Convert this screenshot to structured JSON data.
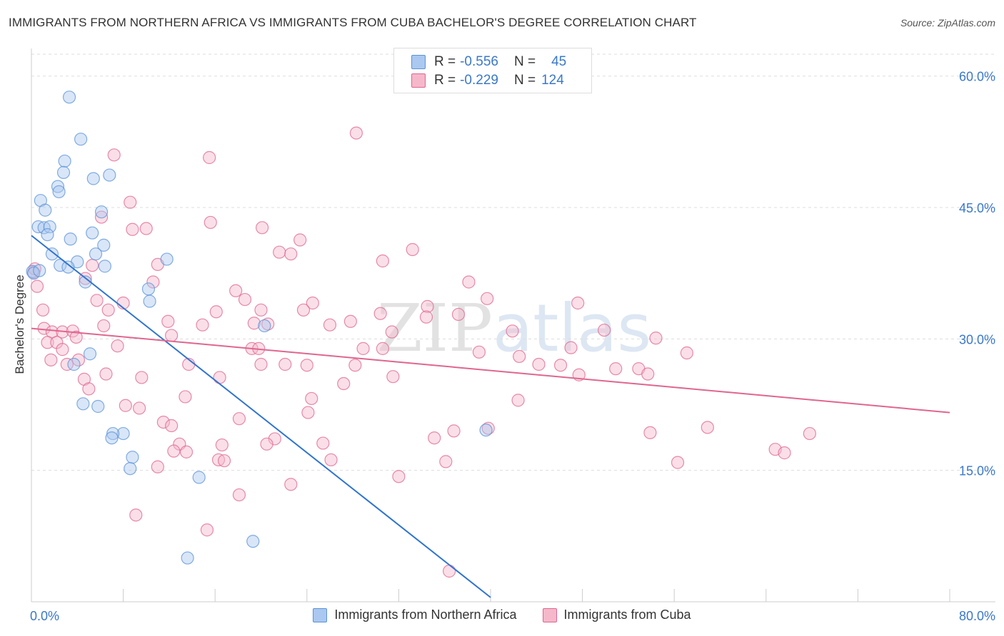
{
  "title": "IMMIGRANTS FROM NORTHERN AFRICA VS IMMIGRANTS FROM CUBA BACHELOR'S DEGREE CORRELATION CHART",
  "source": "Source: ZipAtlas.com",
  "watermark": "ZIPatlas",
  "legend": {
    "rows": [
      {
        "r_label": "R =",
        "r_value": "-0.556",
        "n_label": "N =",
        "n_value": "45",
        "color": "#aac8f0"
      },
      {
        "r_label": "R =",
        "r_value": "-0.229",
        "n_label": "N =",
        "n_value": "124",
        "color": "#f5b8cb"
      }
    ]
  },
  "chart_data": {
    "type": "scatter",
    "title": "IMMIGRANTS FROM NORTHERN AFRICA VS IMMIGRANTS FROM CUBA BACHELOR'S DEGREE CORRELATION CHART",
    "xlabel": "",
    "ylabel": "Bachelor's Degree",
    "xlim": [
      0,
      80
    ],
    "ylim": [
      0,
      62.5
    ],
    "x_tick_labels": [
      "0.0%",
      "80.0%"
    ],
    "y_ticks": [
      15,
      30,
      45,
      60
    ],
    "y_tick_labels": [
      "15.0%",
      "30.0%",
      "45.0%",
      "60.0%"
    ],
    "grid": true,
    "series": [
      {
        "name": "Immigrants from Northern Africa",
        "color": "#5b93d8",
        "fill": "#aac8f0",
        "trend": {
          "x": [
            0,
            40
          ],
          "y": [
            41.8,
            0.5
          ]
        },
        "points": [
          [
            3.3,
            57.6
          ],
          [
            4.3,
            52.8
          ],
          [
            2.9,
            50.3
          ],
          [
            2.8,
            49.0
          ],
          [
            6.8,
            48.7
          ],
          [
            5.4,
            48.3
          ],
          [
            2.3,
            47.4
          ],
          [
            2.4,
            46.8
          ],
          [
            0.8,
            45.8
          ],
          [
            1.2,
            44.7
          ],
          [
            6.1,
            44.5
          ],
          [
            0.6,
            42.8
          ],
          [
            1.1,
            42.7
          ],
          [
            1.6,
            42.8
          ],
          [
            5.3,
            42.1
          ],
          [
            1.4,
            41.9
          ],
          [
            3.4,
            41.4
          ],
          [
            6.3,
            40.7
          ],
          [
            1.8,
            39.7
          ],
          [
            5.6,
            39.7
          ],
          [
            11.8,
            39.1
          ],
          [
            4.0,
            38.8
          ],
          [
            2.5,
            38.4
          ],
          [
            3.2,
            38.2
          ],
          [
            6.4,
            38.3
          ],
          [
            0.1,
            37.7
          ],
          [
            0.2,
            37.5
          ],
          [
            4.7,
            36.5
          ],
          [
            10.2,
            35.7
          ],
          [
            10.3,
            34.3
          ],
          [
            20.3,
            31.5
          ],
          [
            5.1,
            28.3
          ],
          [
            3.7,
            27.1
          ],
          [
            4.5,
            22.6
          ],
          [
            5.8,
            22.3
          ],
          [
            8.0,
            19.2
          ],
          [
            7.1,
            19.2
          ],
          [
            7.0,
            18.7
          ],
          [
            8.8,
            16.5
          ],
          [
            8.6,
            15.2
          ],
          [
            14.6,
            14.2
          ],
          [
            39.6,
            19.6
          ],
          [
            19.3,
            6.9
          ],
          [
            13.6,
            5.0
          ],
          [
            0.7,
            37.8
          ]
        ]
      },
      {
        "name": "Immigrants from Cuba",
        "color": "#e0668f",
        "fill": "#f5b8cb",
        "trend": {
          "x": [
            0,
            80
          ],
          "y": [
            31.2,
            21.6
          ]
        },
        "points": [
          [
            28.3,
            53.5
          ],
          [
            7.2,
            51.0
          ],
          [
            15.5,
            50.7
          ],
          [
            8.6,
            45.6
          ],
          [
            6.1,
            43.9
          ],
          [
            15.6,
            43.3
          ],
          [
            8.8,
            42.5
          ],
          [
            10.0,
            42.6
          ],
          [
            20.1,
            42.7
          ],
          [
            23.4,
            41.3
          ],
          [
            33.2,
            40.2
          ],
          [
            21.6,
            39.9
          ],
          [
            22.6,
            39.7
          ],
          [
            30.6,
            38.9
          ],
          [
            11.0,
            38.5
          ],
          [
            5.3,
            38.4
          ],
          [
            0.2,
            37.6
          ],
          [
            0.5,
            36.0
          ],
          [
            4.7,
            36.9
          ],
          [
            10.6,
            36.5
          ],
          [
            38.1,
            36.5
          ],
          [
            17.8,
            35.5
          ],
          [
            39.7,
            34.6
          ],
          [
            18.6,
            34.5
          ],
          [
            5.7,
            34.4
          ],
          [
            8.0,
            34.1
          ],
          [
            47.6,
            34.1
          ],
          [
            24.5,
            34.1
          ],
          [
            34.5,
            33.7
          ],
          [
            6.7,
            33.3
          ],
          [
            1.0,
            33.3
          ],
          [
            20.0,
            33.3
          ],
          [
            23.7,
            33.3
          ],
          [
            16.1,
            33.1
          ],
          [
            30.4,
            32.9
          ],
          [
            37.2,
            32.8
          ],
          [
            34.4,
            32.5
          ],
          [
            11.9,
            32.0
          ],
          [
            27.8,
            32.0
          ],
          [
            19.4,
            31.8
          ],
          [
            26.0,
            31.6
          ],
          [
            20.6,
            31.7
          ],
          [
            14.9,
            31.6
          ],
          [
            6.3,
            31.5
          ],
          [
            1.1,
            31.2
          ],
          [
            49.9,
            31.0
          ],
          [
            31.4,
            30.8
          ],
          [
            1.8,
            30.8
          ],
          [
            2.7,
            30.8
          ],
          [
            3.6,
            30.9
          ],
          [
            41.9,
            30.9
          ],
          [
            12.2,
            30.4
          ],
          [
            3.9,
            30.2
          ],
          [
            54.4,
            30.1
          ],
          [
            1.4,
            29.6
          ],
          [
            2.2,
            29.6
          ],
          [
            7.5,
            29.2
          ],
          [
            47.0,
            29.0
          ],
          [
            30.6,
            28.9
          ],
          [
            2.7,
            28.8
          ],
          [
            19.2,
            28.9
          ],
          [
            28.9,
            28.9
          ],
          [
            39.0,
            28.5
          ],
          [
            19.8,
            28.9
          ],
          [
            57.1,
            28.4
          ],
          [
            42.5,
            28.0
          ],
          [
            1.7,
            27.6
          ],
          [
            4.1,
            27.6
          ],
          [
            3.1,
            27.1
          ],
          [
            13.7,
            27.1
          ],
          [
            20.0,
            27.1
          ],
          [
            22.1,
            27.1
          ],
          [
            24.0,
            27.0
          ],
          [
            44.2,
            27.1
          ],
          [
            46.1,
            27.0
          ],
          [
            28.2,
            27.0
          ],
          [
            50.9,
            26.6
          ],
          [
            52.9,
            26.6
          ],
          [
            6.5,
            26.0
          ],
          [
            53.7,
            26.0
          ],
          [
            47.7,
            25.9
          ],
          [
            16.4,
            25.6
          ],
          [
            31.5,
            25.7
          ],
          [
            4.6,
            25.4
          ],
          [
            9.6,
            25.6
          ],
          [
            27.2,
            24.9
          ],
          [
            5.0,
            24.3
          ],
          [
            13.4,
            23.4
          ],
          [
            24.4,
            23.2
          ],
          [
            42.4,
            23.0
          ],
          [
            8.2,
            22.4
          ],
          [
            9.4,
            22.1
          ],
          [
            24.1,
            21.6
          ],
          [
            18.1,
            20.9
          ],
          [
            11.5,
            20.5
          ],
          [
            12.2,
            20.1
          ],
          [
            36.8,
            19.5
          ],
          [
            39.8,
            19.8
          ],
          [
            58.9,
            19.9
          ],
          [
            67.8,
            19.2
          ],
          [
            53.9,
            19.3
          ],
          [
            21.2,
            18.6
          ],
          [
            20.5,
            18.0
          ],
          [
            12.9,
            18.0
          ],
          [
            16.6,
            17.9
          ],
          [
            25.4,
            18.1
          ],
          [
            35.1,
            18.7
          ],
          [
            12.4,
            17.2
          ],
          [
            13.5,
            17.1
          ],
          [
            64.8,
            17.4
          ],
          [
            65.6,
            17.0
          ],
          [
            16.3,
            16.2
          ],
          [
            16.8,
            16.1
          ],
          [
            36.1,
            16.0
          ],
          [
            56.3,
            15.9
          ],
          [
            11.0,
            15.4
          ],
          [
            32.0,
            14.3
          ],
          [
            22.6,
            13.4
          ],
          [
            18.1,
            12.2
          ],
          [
            9.1,
            9.9
          ],
          [
            15.3,
            8.2
          ],
          [
            36.4,
            3.5
          ],
          [
            0.3,
            38.0
          ],
          [
            26.1,
            16.2
          ]
        ]
      }
    ]
  }
}
